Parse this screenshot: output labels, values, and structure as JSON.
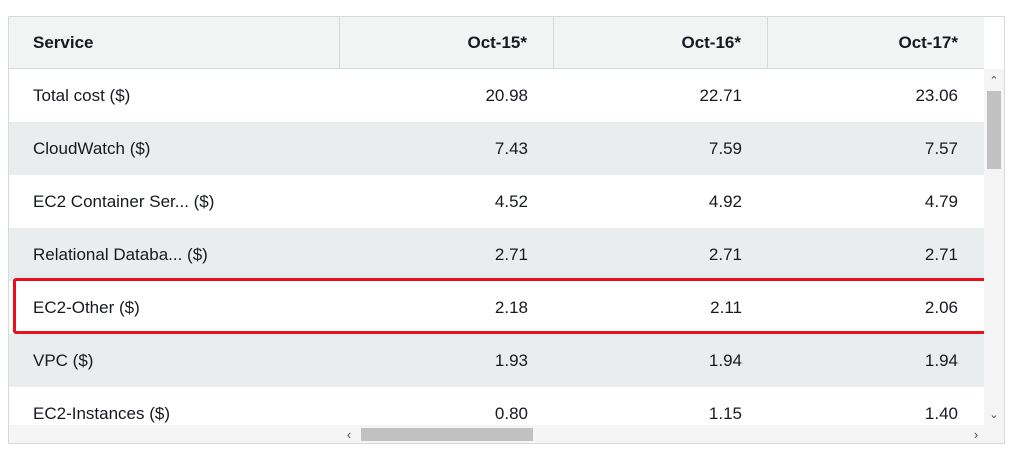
{
  "table": {
    "columns": [
      "Service",
      "Oct-15*",
      "Oct-16*",
      "Oct-17*"
    ],
    "rows": [
      {
        "service": "Total cost ($)",
        "values": [
          "20.98",
          "22.71",
          "23.06"
        ]
      },
      {
        "service": "CloudWatch ($)",
        "values": [
          "7.43",
          "7.59",
          "7.57"
        ]
      },
      {
        "service": "EC2 Container Ser... ($)",
        "values": [
          "4.52",
          "4.92",
          "4.79"
        ]
      },
      {
        "service": "Relational Databa... ($)",
        "values": [
          "2.71",
          "2.71",
          "2.71"
        ]
      },
      {
        "service": "EC2-Other ($)",
        "values": [
          "2.18",
          "2.11",
          "2.06"
        ]
      },
      {
        "service": "VPC ($)",
        "values": [
          "1.93",
          "1.94",
          "1.94"
        ]
      },
      {
        "service": "EC2-Instances ($)",
        "values": [
          "0.80",
          "1.15",
          "1.40"
        ]
      }
    ],
    "highlighted_row": "EC2-Other ($)"
  },
  "colors": {
    "header_bg": "#f2f3f3",
    "alt_row_bg": "#eaeded",
    "highlight_border": "#e8101b"
  },
  "icons": {
    "scroll_up": "chevron-up-icon",
    "scroll_down": "chevron-down-icon",
    "scroll_left": "chevron-left-icon",
    "scroll_right": "chevron-right-icon"
  }
}
